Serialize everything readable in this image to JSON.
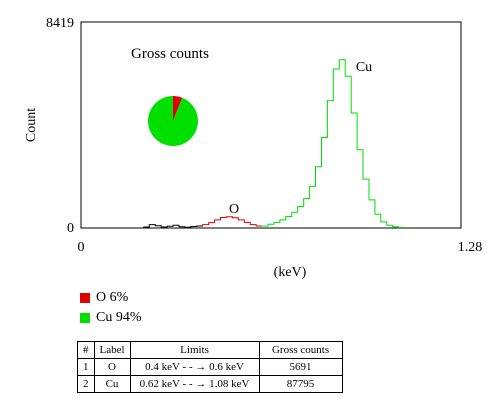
{
  "chart_data": {
    "type": "line",
    "title": "Gross counts",
    "xlabel": "(keV)",
    "ylabel": "Count",
    "xlim": [
      0,
      1.28
    ],
    "ylim": [
      0,
      8419
    ],
    "x_tick_labels": [
      "0",
      "1.28"
    ],
    "y_tick_labels": [
      "0",
      "8419"
    ],
    "annotations": [
      "O",
      "Cu"
    ],
    "series": [
      {
        "name": "O",
        "color": "#e00000",
        "x": [
          0.4,
          0.42,
          0.44,
          0.46,
          0.48,
          0.5,
          0.52,
          0.54,
          0.56,
          0.58,
          0.6
        ],
        "y": [
          80,
          140,
          220,
          330,
          430,
          460,
          420,
          330,
          230,
          140,
          80
        ]
      },
      {
        "name": "Cu",
        "color": "#00e000",
        "x": [
          0.62,
          0.64,
          0.66,
          0.68,
          0.7,
          0.72,
          0.74,
          0.76,
          0.78,
          0.8,
          0.82,
          0.84,
          0.86,
          0.88,
          0.9,
          0.92,
          0.94,
          0.96,
          0.98,
          1.0,
          1.02,
          1.04,
          1.06,
          1.08
        ],
        "y": [
          80,
          150,
          230,
          330,
          470,
          640,
          880,
          1200,
          1700,
          2500,
          3700,
          5200,
          6500,
          6880,
          6200,
          4700,
          3200,
          2000,
          1150,
          560,
          250,
          110,
          50,
          20
        ]
      },
      {
        "name": "",
        "color": "#000000",
        "x": [
          0.22,
          0.24,
          0.26,
          0.28,
          0.3,
          0.32,
          0.34,
          0.36,
          0.38,
          0.4
        ],
        "y": [
          40,
          140,
          90,
          40,
          70,
          110,
          50,
          30,
          60,
          80
        ]
      }
    ],
    "pie": {
      "title": "Gross counts",
      "slices": [
        {
          "label": "O",
          "percent": 6,
          "color": "#e00000"
        },
        {
          "label": "Cu",
          "percent": 94,
          "color": "#00e000"
        }
      ]
    }
  },
  "legend": [
    {
      "label": "O 6%",
      "color": "#e00000"
    },
    {
      "label": "Cu 94%",
      "color": "#00e000"
    }
  ],
  "table": {
    "headers": [
      "#",
      "Label",
      "Limits",
      "Gross counts"
    ],
    "rows": [
      [
        "1",
        "O",
        "0.4 keV - - → 0.6 keV",
        "5691"
      ],
      [
        "2",
        "Cu",
        "0.62 keV - - → 1.08 keV",
        "87795"
      ]
    ]
  }
}
